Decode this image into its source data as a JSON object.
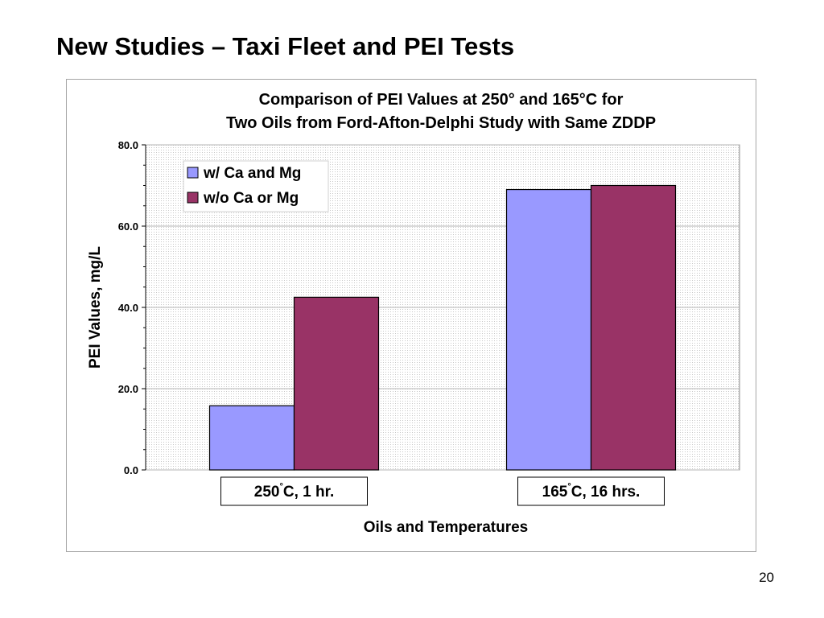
{
  "slide": {
    "title": "New Studies – Taxi Fleet and PEI Tests",
    "page_number": "20"
  },
  "chart_data": {
    "type": "bar",
    "title": "Comparison of PEI Values at 250° and 165°C for",
    "subtitle": "Two Oils from Ford-Afton-Delphi Study with Same ZDDP",
    "xlabel": "Oils and Temperatures",
    "ylabel": "PEI Values, mg/L",
    "ylim": [
      0,
      80
    ],
    "yticks": [
      "0.0",
      "20.0",
      "40.0",
      "60.0",
      "80.0"
    ],
    "categories": [
      {
        "label": "250",
        "sup": "°",
        "suffix": "C, 1 hr."
      },
      {
        "label": "165",
        "sup": "°",
        "suffix": "C, 16 hrs."
      }
    ],
    "series": [
      {
        "name": "w/ Ca and Mg",
        "color": "#9999ff",
        "values": [
          15.8,
          69
        ]
      },
      {
        "name": "w/o Ca or Mg",
        "color": "#993366",
        "values": [
          42.5,
          70
        ]
      }
    ],
    "grid": true,
    "legend_position": "top-left"
  }
}
